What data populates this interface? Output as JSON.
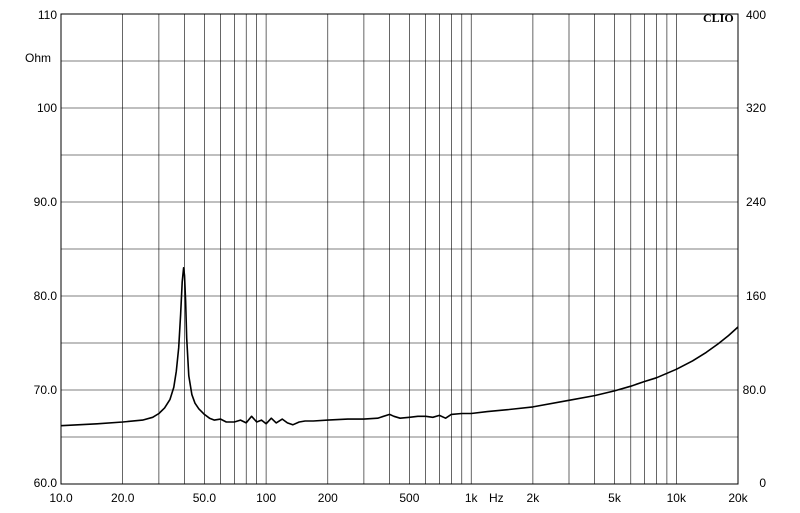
{
  "chart_data": {
    "type": "line",
    "brand": "CLIO",
    "x_scale": "log",
    "xlim": [
      10,
      20000
    ],
    "ylim": [
      60,
      110
    ],
    "y2lim": [
      0,
      400
    ],
    "grid": true,
    "y_unit_label": "Ohm",
    "x_unit_label": "Hz",
    "x_ticks": [
      {
        "value": 10,
        "label": "10.0"
      },
      {
        "value": 20,
        "label": "20.0"
      },
      {
        "value": 50,
        "label": "50.0"
      },
      {
        "value": 100,
        "label": "100"
      },
      {
        "value": 200,
        "label": "200"
      },
      {
        "value": 500,
        "label": "500"
      },
      {
        "value": 1000,
        "label": "1k"
      },
      {
        "value": 2000,
        "label": "2k"
      },
      {
        "value": 5000,
        "label": "5k"
      },
      {
        "value": 10000,
        "label": "10k"
      },
      {
        "value": 20000,
        "label": "20k"
      }
    ],
    "y_ticks": [
      {
        "value": 110,
        "label": "110"
      },
      {
        "value": 100,
        "label": "100"
      },
      {
        "value": 90,
        "label": "90.0"
      },
      {
        "value": 80,
        "label": "80.0"
      },
      {
        "value": 70,
        "label": "70.0"
      },
      {
        "value": 60,
        "label": "60.0"
      }
    ],
    "y2_ticks": [
      {
        "value": 400,
        "label": "400"
      },
      {
        "value": 320,
        "label": "320"
      },
      {
        "value": 240,
        "label": "240"
      },
      {
        "value": 160,
        "label": "160"
      },
      {
        "value": 80,
        "label": "80.0"
      },
      {
        "value": 0,
        "label": "0"
      }
    ],
    "series": [
      {
        "color": "#000000",
        "x": [
          10,
          15,
          20,
          25,
          28,
          30,
          32,
          34,
          35.5,
          36.5,
          37.5,
          38.3,
          39,
          39.6,
          40,
          40.5,
          41,
          42,
          43.5,
          45,
          47,
          50,
          53,
          56,
          60,
          64,
          70,
          75,
          80,
          85,
          90,
          95,
          100,
          106,
          112,
          120,
          127,
          135,
          145,
          155,
          170,
          200,
          250,
          300,
          350,
          400,
          420,
          450,
          500,
          550,
          600,
          650,
          700,
          750,
          800,
          900,
          1000,
          1200,
          1500,
          2000,
          3000,
          4000,
          5000,
          6000,
          7000,
          8000,
          10000,
          12000,
          14000,
          16000,
          18000,
          20000
        ],
        "values": [
          66.2,
          66.4,
          66.6,
          66.8,
          67.1,
          67.5,
          68.1,
          69.0,
          70.3,
          72.0,
          74.5,
          78.0,
          81.5,
          83.0,
          82.2,
          79.5,
          75.5,
          71.5,
          69.5,
          68.6,
          68.0,
          67.4,
          67.0,
          66.8,
          66.9,
          66.6,
          66.6,
          66.8,
          66.5,
          67.2,
          66.6,
          66.8,
          66.4,
          67.0,
          66.5,
          66.9,
          66.5,
          66.3,
          66.6,
          66.7,
          66.7,
          66.8,
          66.9,
          66.9,
          67.0,
          67.4,
          67.2,
          67.0,
          67.1,
          67.2,
          67.2,
          67.1,
          67.3,
          67.0,
          67.4,
          67.5,
          67.5,
          67.7,
          67.9,
          68.2,
          68.9,
          69.4,
          69.9,
          70.4,
          70.9,
          71.3,
          72.2,
          73.1,
          74.0,
          74.9,
          75.8,
          76.7
        ]
      }
    ]
  }
}
